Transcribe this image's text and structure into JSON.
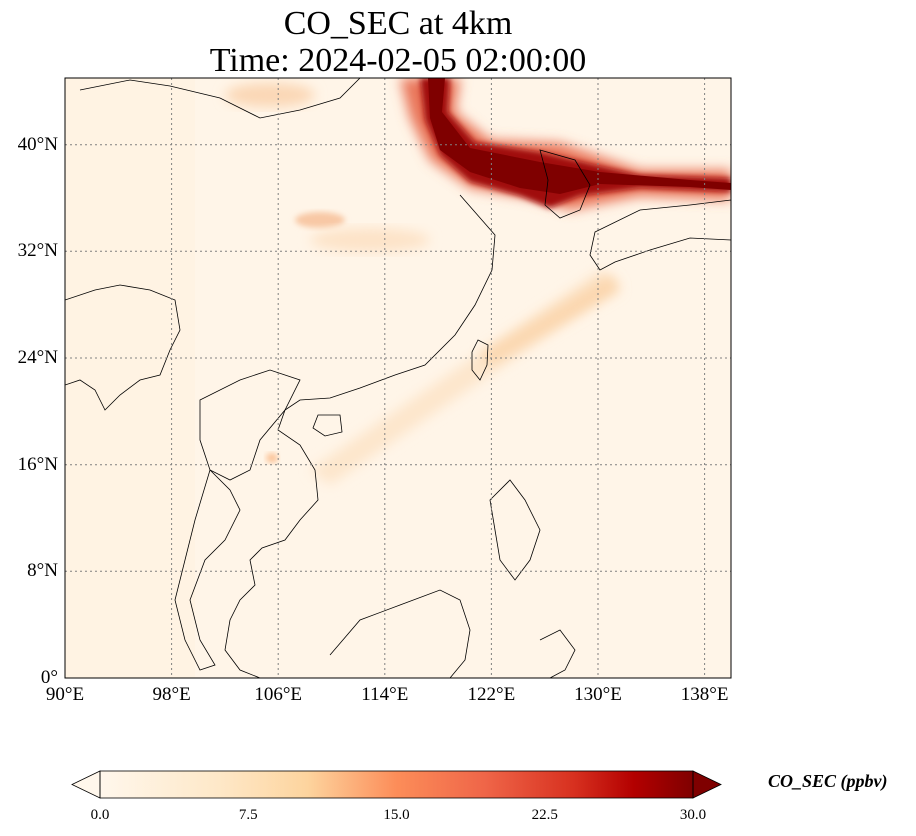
{
  "title": {
    "line1": "CO_SEC at 4km",
    "line2": "Time: 2024-02-05 02:00:00"
  },
  "map": {
    "projection": "PlateCarree",
    "lon_range": [
      90,
      140
    ],
    "lat_range": [
      0,
      45
    ],
    "gridlines": "dotted",
    "x_ticks": [
      {
        "value": 90,
        "label": "90°E"
      },
      {
        "value": 98,
        "label": "98°E"
      },
      {
        "value": 106,
        "label": "106°E"
      },
      {
        "value": 114,
        "label": "114°E"
      },
      {
        "value": 122,
        "label": "122°E"
      },
      {
        "value": 130,
        "label": "130°E"
      },
      {
        "value": 138,
        "label": "138°E"
      }
    ],
    "y_ticks": [
      {
        "value": 0,
        "label": "0°"
      },
      {
        "value": 8,
        "label": "8°N"
      },
      {
        "value": 16,
        "label": "16°N"
      },
      {
        "value": 24,
        "label": "24°N"
      },
      {
        "value": 32,
        "label": "32°N"
      },
      {
        "value": 40,
        "label": "40°N"
      }
    ],
    "colormap": "OrRd",
    "field_summary": "Highest CO_SEC (~30 ppbv) in a band from northern China (~117°E, 44°N) south-east over the Korean peninsula (~37°N) and east toward Japan (~140°E, 37°N); weak plumes (~5 ppbv) from south-east China north-east past Taiwan; background near 0–3 ppbv."
  },
  "colorbar": {
    "label": "CO_SEC (ppbv)",
    "ticks": [
      "0.0",
      "7.5",
      "15.0",
      "22.5",
      "30.0"
    ],
    "min": 0,
    "max": 30,
    "extend": "both"
  }
}
